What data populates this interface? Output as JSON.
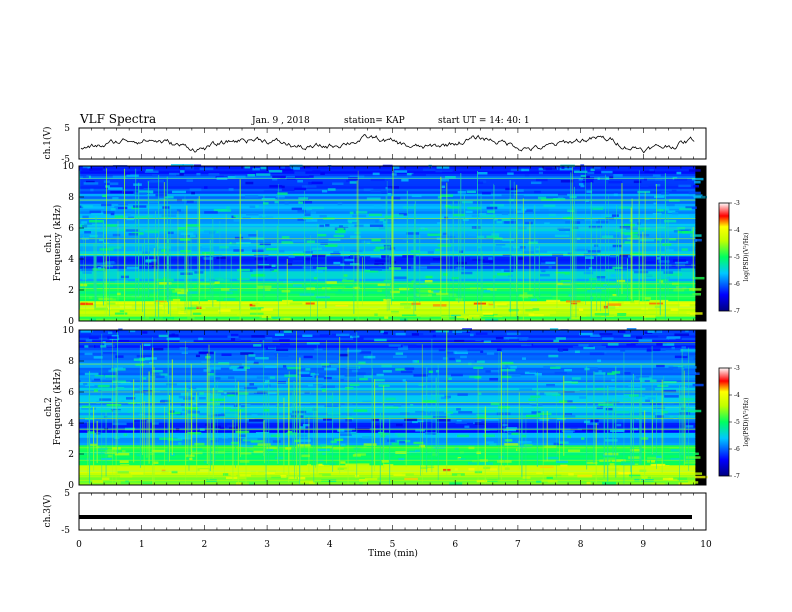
{
  "header": {
    "title": "VLF Spectra",
    "date": "Jan. 9 , 2018",
    "station": "station= KAP",
    "start": "start UT =   14: 40: 1"
  },
  "chart_data": [
    {
      "type": "line",
      "name": "ch1-waveform",
      "ylabel": "ch.1(V)",
      "ylim": [
        -5,
        5
      ],
      "yticks": [
        "5",
        "-5"
      ],
      "xlim": [
        0,
        10
      ]
    },
    {
      "type": "heatmap",
      "name": "ch1-spectrogram",
      "ylabel_top": "ch.1",
      "ylabel": "Frequency (kHz)",
      "ylim": [
        0,
        10
      ],
      "yticks": [
        "0",
        "2",
        "4",
        "6",
        "8",
        "10"
      ],
      "xlim": [
        0,
        9.83
      ],
      "colorbar": {
        "range": [
          -7,
          -3
        ],
        "ticks": [
          "-3",
          "-4",
          "-5",
          "-6",
          "-7"
        ],
        "label": "log(PSD)(V²/Hz)"
      }
    },
    {
      "type": "heatmap",
      "name": "ch2-spectrogram",
      "ylabel_top": "ch.2",
      "ylabel": "Frequency (kHz)",
      "ylim": [
        0,
        10
      ],
      "yticks": [
        "0",
        "2",
        "4",
        "6",
        "8",
        "10"
      ],
      "xlim": [
        0,
        9.83
      ],
      "colorbar": {
        "range": [
          -7,
          -3
        ],
        "ticks": [
          "-3",
          "-4",
          "-5",
          "-6",
          "-7"
        ],
        "label": "log(PSD)(V²/Hz)"
      }
    },
    {
      "type": "line",
      "name": "ch3-waveform",
      "ylabel": "ch.3(V)",
      "ylim": [
        -5,
        5
      ],
      "yticks": [
        "5",
        "-5"
      ],
      "xlim": [
        0,
        10
      ],
      "level": -1.5
    }
  ],
  "xaxis": {
    "label": "Time (min)",
    "ticks": [
      "0",
      "1",
      "2",
      "3",
      "4",
      "5",
      "6",
      "7",
      "8",
      "9",
      "10"
    ],
    "range": [
      0,
      10
    ]
  }
}
